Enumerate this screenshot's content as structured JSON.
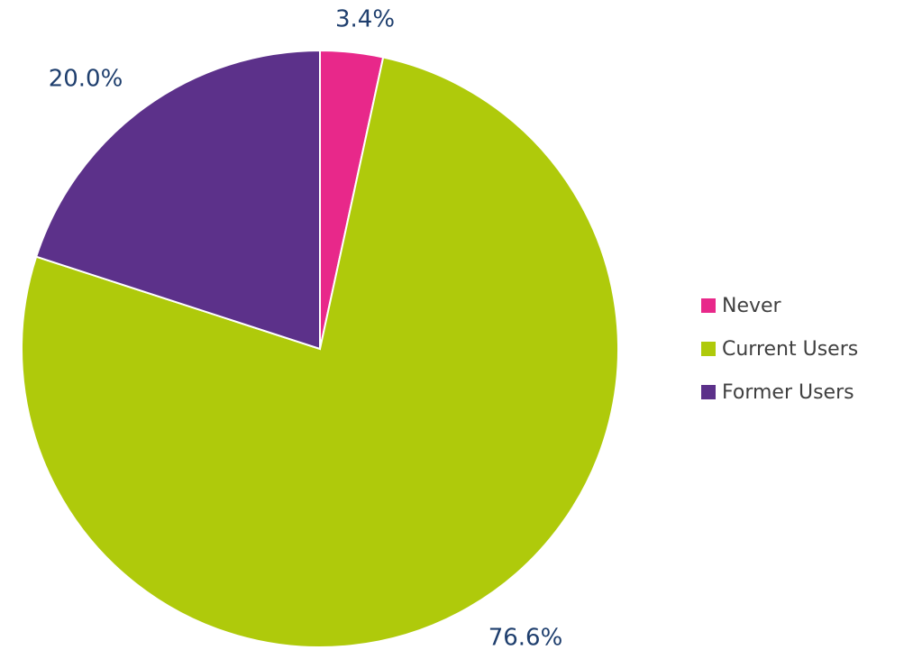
{
  "chart_data": {
    "type": "pie",
    "categories": [
      "Never",
      "Current Users",
      "Former Users"
    ],
    "values": [
      3.4,
      76.6,
      20.0
    ],
    "value_labels": [
      "3.4%",
      "76.6%",
      "20.0%"
    ],
    "colors": [
      "#e8288a",
      "#afca0b",
      "#5c318a"
    ],
    "legend": "right"
  }
}
